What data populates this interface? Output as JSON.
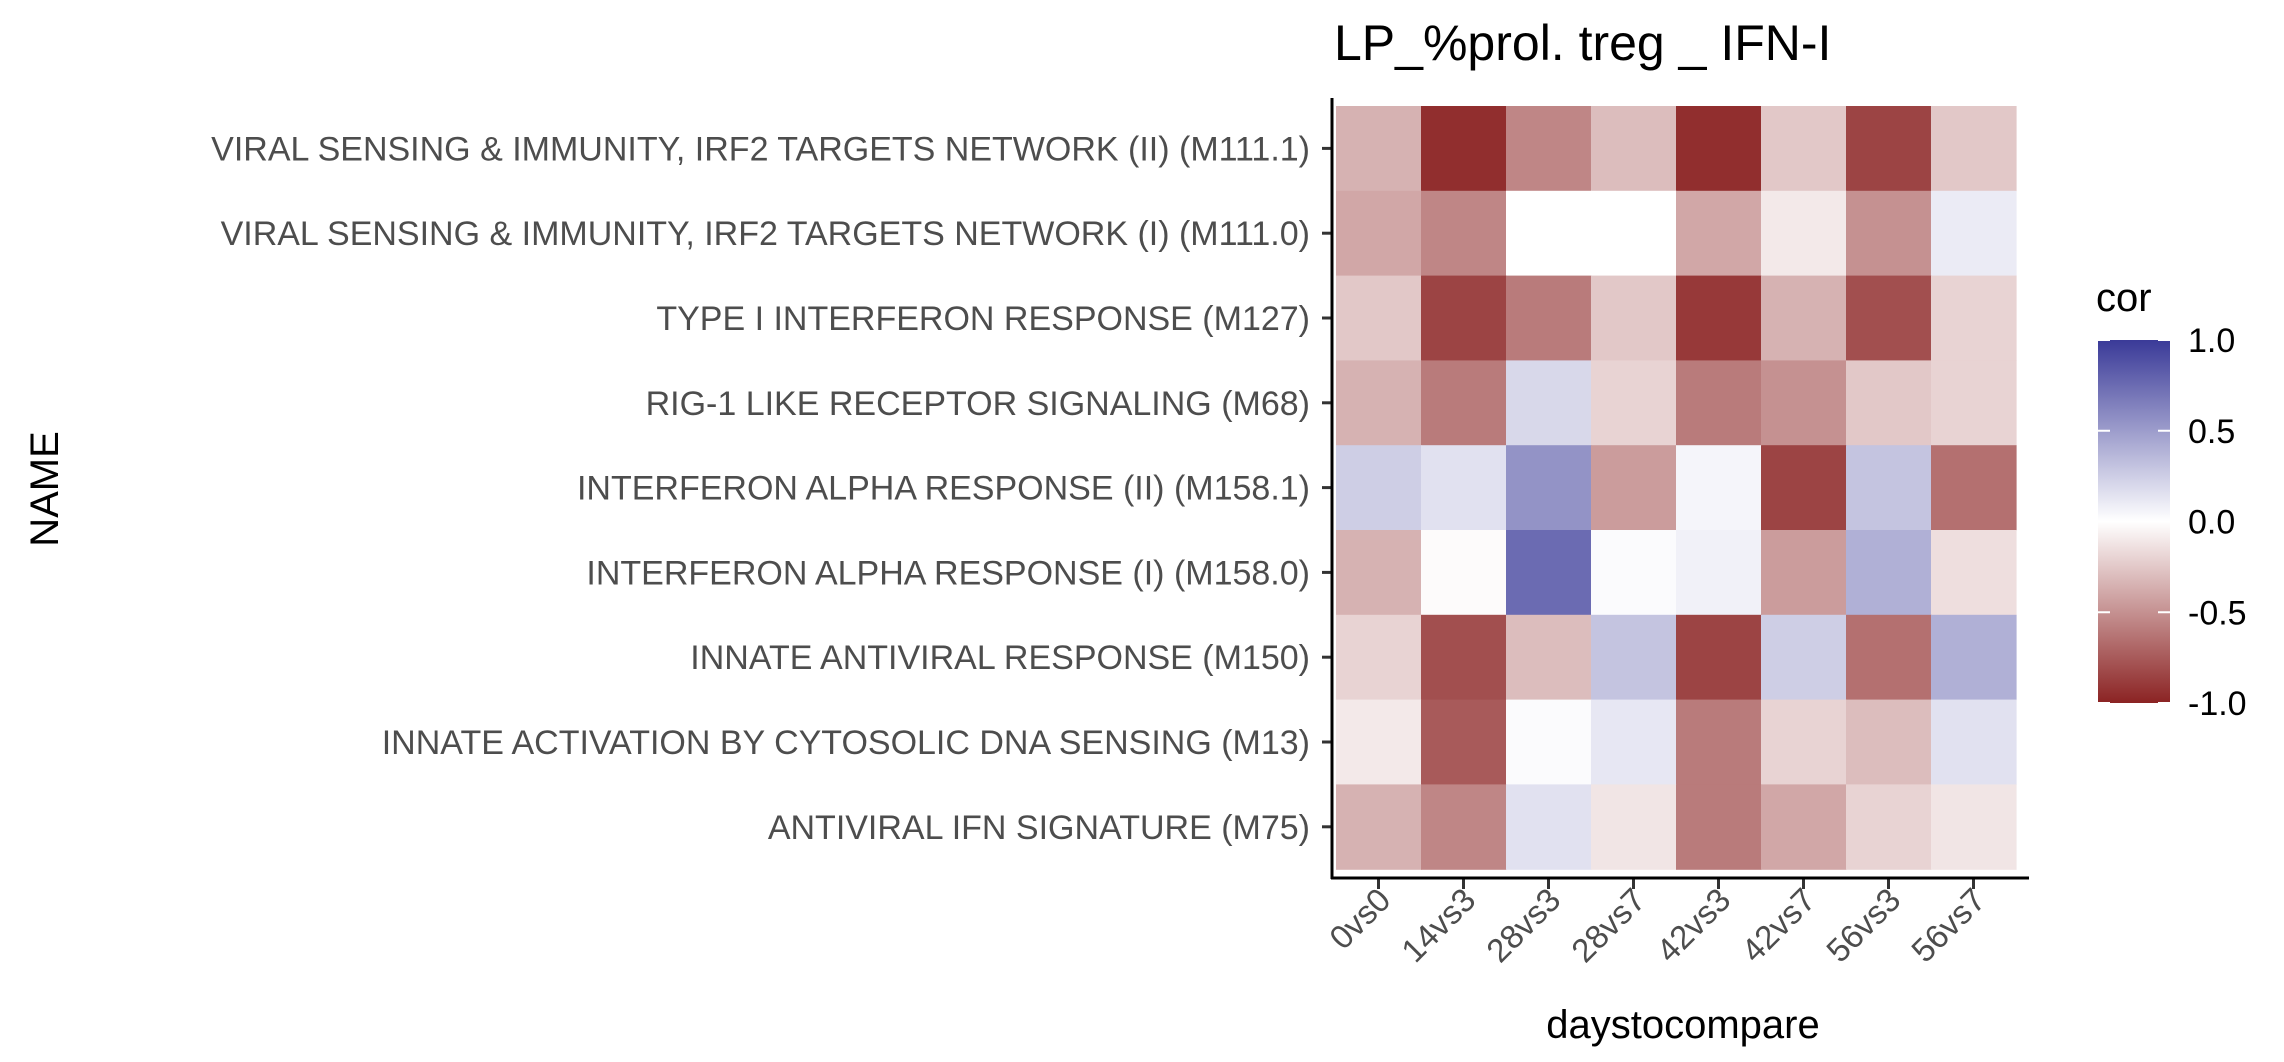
{
  "chart_data": {
    "type": "heatmap",
    "title": "LP_%prol. treg _ IFN-I",
    "xlabel": "daystocompare",
    "ylabel": "NAME",
    "x": [
      "0vs0",
      "14vs3",
      "28vs3",
      "28vs7",
      "42vs3",
      "42vs7",
      "56vs3",
      "56vs7"
    ],
    "y": [
      "VIRAL SENSING & IMMUNITY,  IRF2 TARGETS NETWORK (II) (M111.1)",
      "VIRAL SENSING & IMMUNITY,  IRF2 TARGETS NETWORK (I) (M111.0)",
      "TYPE I INTERFERON RESPONSE (M127)",
      "RIG-1 LIKE RECEPTOR SIGNALING (M68)",
      "INTERFERON ALPHA RESPONSE (II) (M158.1)",
      "INTERFERON ALPHA RESPONSE (I) (M158.0)",
      "INNATE ANTIVIRAL RESPONSE (M150)",
      "INNATE ACTIVATION BY CYTOSOLIC DNA SENSING (M13)",
      "ANTIVIRAL IFN SIGNATURE (M75)"
    ],
    "values": [
      [
        -0.35,
        -0.95,
        -0.55,
        -0.3,
        -0.95,
        -0.25,
        -0.85,
        -0.25
      ],
      [
        -0.4,
        -0.55,
        0.0,
        0.0,
        -0.4,
        -0.1,
        -0.5,
        0.1
      ],
      [
        -0.25,
        -0.85,
        -0.6,
        -0.25,
        -0.9,
        -0.35,
        -0.8,
        -0.2
      ],
      [
        -0.35,
        -0.6,
        0.2,
        -0.2,
        -0.6,
        -0.5,
        -0.25,
        -0.2
      ],
      [
        0.25,
        0.15,
        0.55,
        -0.45,
        0.05,
        -0.85,
        0.3,
        -0.65
      ],
      [
        -0.35,
        -0.02,
        0.75,
        0.02,
        0.07,
        -0.45,
        0.4,
        -0.15
      ],
      [
        -0.2,
        -0.8,
        -0.3,
        0.3,
        -0.85,
        0.25,
        -0.65,
        0.4
      ],
      [
        -0.1,
        -0.75,
        0.02,
        0.12,
        -0.6,
        -0.2,
        -0.3,
        0.15
      ],
      [
        -0.35,
        -0.55,
        0.15,
        -0.12,
        -0.6,
        -0.4,
        -0.2,
        -0.12
      ]
    ],
    "legend": {
      "title": "cor",
      "position": "right",
      "ticks": [
        "1.0",
        "0.5",
        "0.0",
        "-0.5",
        "-1.0"
      ],
      "range": [
        -1,
        1
      ],
      "low_color": "#8b2323",
      "mid_color": "#ffffff",
      "high_color": "#3a3a98"
    }
  }
}
